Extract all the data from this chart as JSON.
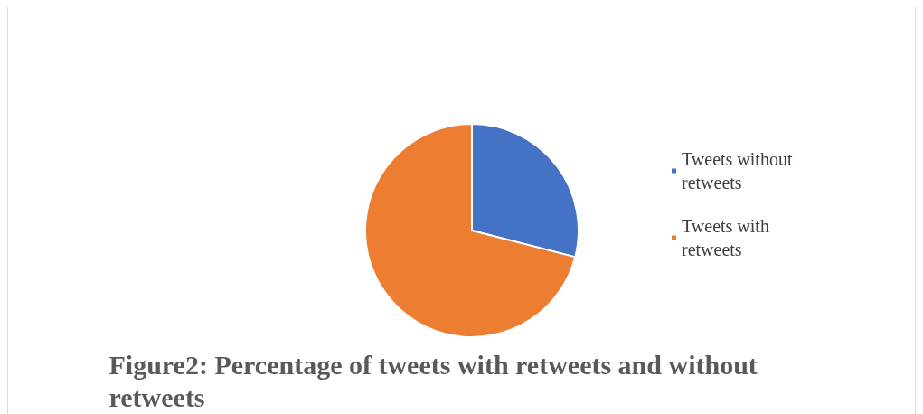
{
  "chart_data": {
    "type": "pie",
    "title": "Figure2: Percentage of tweets with retweets and without retweets",
    "categories": [
      "Tweets without retweets",
      "Tweets with retweets"
    ],
    "values": [
      29,
      71
    ],
    "colors": [
      "#4472c4",
      "#ed7d31"
    ],
    "legend": "right"
  }
}
